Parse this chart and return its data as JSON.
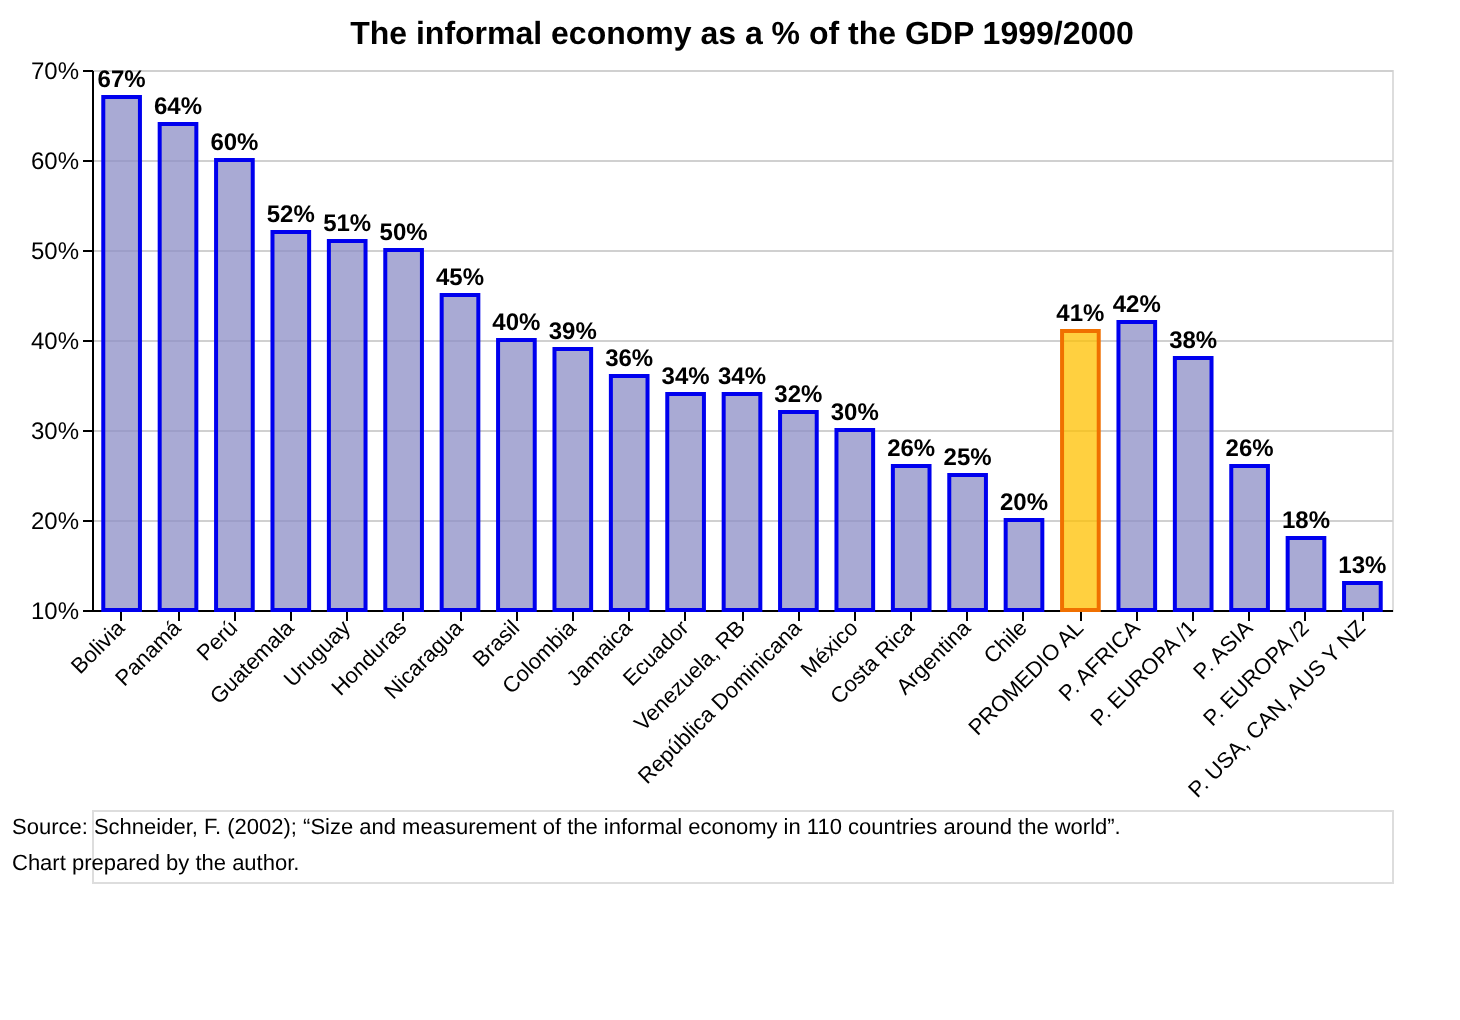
{
  "chart_data": {
    "type": "bar",
    "title": "The informal economy as a % of the GDP 1999/2000",
    "categories": [
      "Bolivia",
      "Panamá",
      "Perú",
      "Guatemala",
      "Uruguay",
      "Honduras",
      "Nicaragua",
      "Brasil",
      "Colombia",
      "Jamaica",
      "Ecuador",
      "Venezuela, RB",
      "República Dominicana",
      "México",
      "Costa Rica",
      "Argentina",
      "Chile",
      "PROMEDIO AL",
      "P. AFRICA",
      "P. EUROPA /1",
      "P. ASIA",
      "P. EUROPA /2",
      "P. USA, CAN, AUS Y NZ"
    ],
    "values": [
      67,
      64,
      60,
      52,
      51,
      50,
      45,
      40,
      39,
      36,
      34,
      34,
      32,
      30,
      26,
      25,
      20,
      41,
      42,
      38,
      26,
      18,
      13
    ],
    "value_labels": [
      "67%",
      "64%",
      "60%",
      "52%",
      "51%",
      "50%",
      "45%",
      "40%",
      "39%",
      "36%",
      "34%",
      "34%",
      "32%",
      "30%",
      "26%",
      "25%",
      "20%",
      "41%",
      "42%",
      "38%",
      "26%",
      "18%",
      "13%"
    ],
    "colors": [
      "#8c8ec6",
      "#8c8ec6",
      "#8c8ec6",
      "#8c8ec6",
      "#8c8ec6",
      "#8c8ec6",
      "#8c8ec6",
      "#8c8ec6",
      "#8c8ec6",
      "#8c8ec6",
      "#8c8ec6",
      "#8c8ec6",
      "#8c8ec6",
      "#8c8ec6",
      "#8c8ec6",
      "#8c8ec6",
      "#8c8ec6",
      "#ffc000",
      "#8c8ec6",
      "#8c8ec6",
      "#8c8ec6",
      "#8c8ec6",
      "#8c8ec6"
    ],
    "ylim": [
      10,
      70
    ],
    "yticks": [
      {
        "value": 10,
        "label": "10%"
      },
      {
        "value": 20,
        "label": "20%"
      },
      {
        "value": 30,
        "label": "30%"
      },
      {
        "value": 40,
        "label": "40%"
      },
      {
        "value": 50,
        "label": "50%"
      },
      {
        "value": 60,
        "label": "60%"
      },
      {
        "value": 70,
        "label": "70%"
      }
    ],
    "grid": "y",
    "annotations": [
      "Source: Schneider, F. (2002); “Size and measurement of the informal economy in 110 countries around the world”.",
      "Chart prepared by the author."
    ]
  }
}
